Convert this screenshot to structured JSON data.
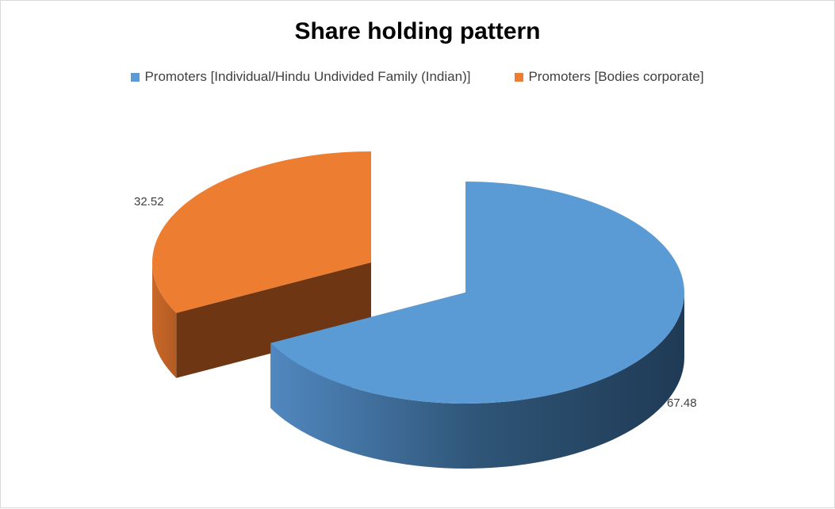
{
  "chart_data": {
    "type": "pie",
    "style": "3d-exploded",
    "title": "Share holding pattern",
    "legend_position": "top",
    "categories": [
      "Promoters [Individual/Hindu Undivided Family (Indian)]",
      "Promoters [Bodies corporate]"
    ],
    "values": [
      67.48,
      32.52
    ],
    "data_labels": [
      "67.48",
      "32.52"
    ],
    "colors": [
      "#5b9bd5",
      "#ed7d31"
    ]
  }
}
